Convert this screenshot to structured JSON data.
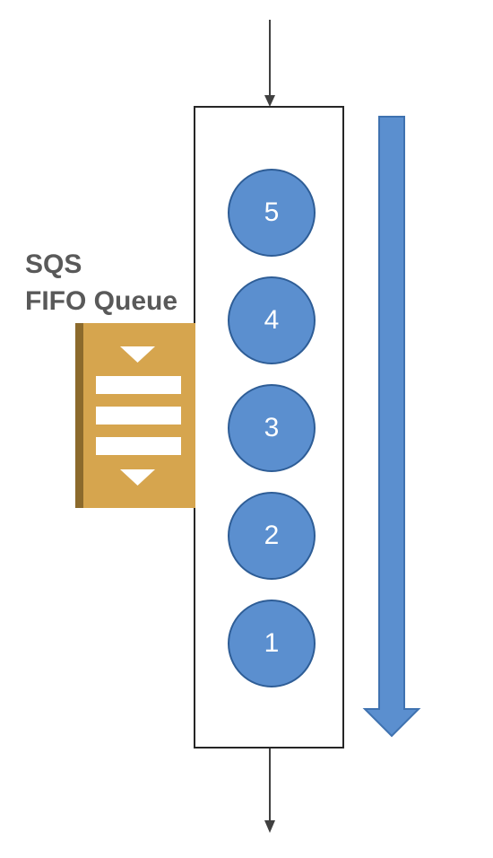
{
  "label": {
    "line1": "SQS",
    "line2": "FIFO Queue"
  },
  "queue": {
    "messages": [
      "5",
      "4",
      "3",
      "2",
      "1"
    ]
  },
  "icons": {
    "queue_icon": "sqs-queue-icon",
    "flow_arrow": "down-arrow-icon"
  },
  "colors": {
    "message_fill": "#5b8fcf",
    "flow_arrow": "#5b8fcf",
    "icon_gold": "#d6a54e"
  }
}
